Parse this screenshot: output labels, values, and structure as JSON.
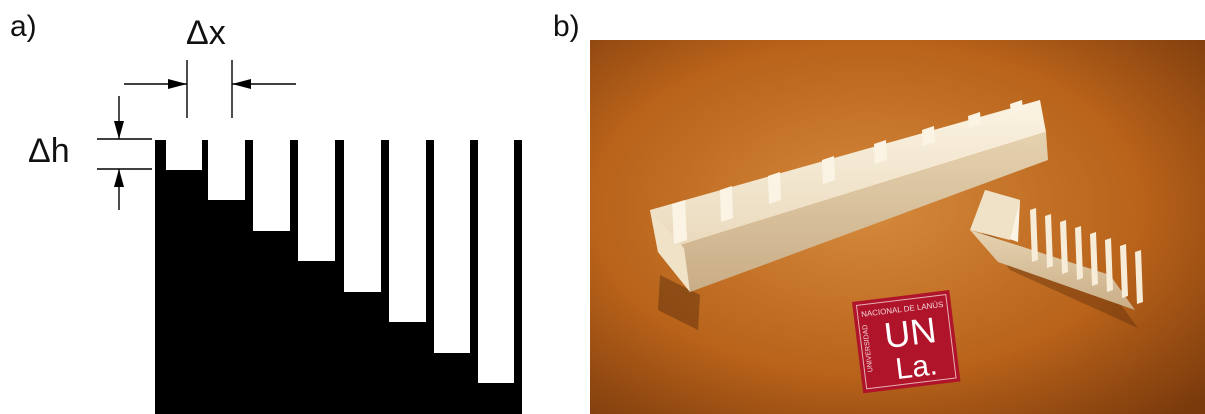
{
  "panel_a": {
    "label": "a)",
    "dx_label": "Δx",
    "dh_label": "Δh",
    "fill_color": "#000000",
    "background_color": "#ffffff"
  },
  "panel_b": {
    "label": "b)",
    "background_color": "#b8621a",
    "piece_color": "#f3ead8",
    "logo": {
      "color": "#b0142a",
      "arc_text": "NACIONAL DE LANÚS",
      "side_text": "UNIVERSIDAD",
      "line1": "UN",
      "line2": "La."
    }
  }
}
